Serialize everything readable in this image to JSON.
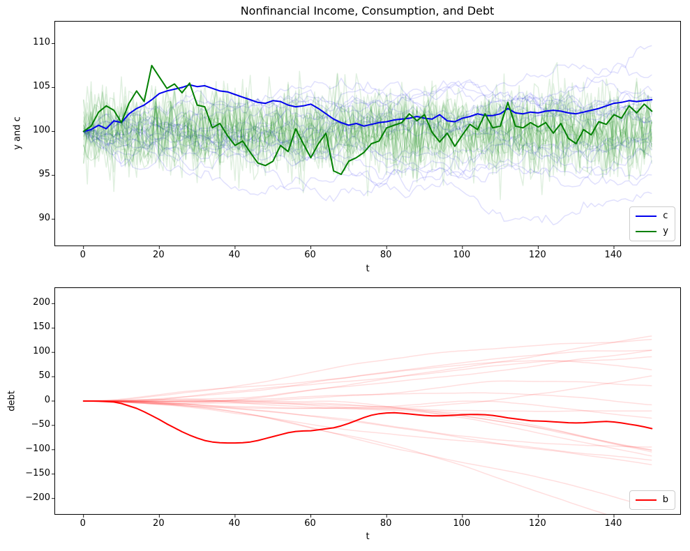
{
  "figure": {
    "title": "Nonfinancial Income, Consumption, and Debt"
  },
  "chart_data": [
    {
      "id": "income-consumption",
      "type": "line",
      "title": "Nonfinancial Income, Consumption, and Debt",
      "xlabel": "t",
      "ylabel": "y and c",
      "xlim": [
        -7.5,
        157.5
      ],
      "ylim": [
        87.0,
        112.5
      ],
      "xticks": [
        0,
        20,
        40,
        60,
        80,
        100,
        120,
        140
      ],
      "yticks": [
        90,
        95,
        100,
        105,
        110
      ],
      "grid": false,
      "t_start": 0,
      "t_step": 2,
      "series": [
        {
          "name": "c",
          "color": "#0000ee",
          "linewidth": 2,
          "values": [
            100.0,
            100.2,
            100.7,
            100.3,
            101.2,
            101.0,
            102.0,
            102.6,
            103.0,
            103.6,
            104.3,
            104.6,
            104.8,
            105.0,
            105.3,
            105.1,
            105.2,
            104.9,
            104.6,
            104.5,
            104.2,
            103.9,
            103.6,
            103.3,
            103.2,
            103.5,
            103.4,
            103.0,
            102.8,
            102.9,
            103.1,
            102.6,
            102.0,
            101.4,
            101.0,
            100.7,
            100.9,
            100.6,
            100.8,
            101.0,
            101.1,
            101.3,
            101.4,
            101.5,
            101.7,
            101.5,
            101.4,
            101.9,
            101.2,
            101.1,
            101.5,
            101.7,
            102.0,
            101.8,
            101.8,
            102.0,
            102.6,
            102.1,
            102.0,
            102.2,
            102.1,
            102.3,
            102.4,
            102.3,
            102.1,
            102.0,
            102.2,
            102.4,
            102.6,
            102.9,
            103.2,
            103.3,
            103.5,
            103.4,
            103.5,
            103.6
          ]
        },
        {
          "name": "y",
          "color": "#008000",
          "linewidth": 2,
          "values": [
            100.0,
            100.6,
            102.2,
            102.9,
            102.4,
            101.0,
            103.2,
            104.6,
            103.4,
            107.5,
            106.2,
            104.9,
            105.4,
            104.4,
            105.5,
            103.0,
            102.8,
            100.4,
            100.9,
            99.5,
            98.4,
            98.9,
            97.6,
            96.4,
            96.1,
            96.6,
            98.4,
            97.7,
            100.3,
            98.6,
            97.0,
            98.6,
            99.8,
            95.5,
            95.1,
            96.6,
            97.0,
            97.6,
            98.6,
            98.9,
            100.4,
            100.7,
            101.0,
            102.0,
            101.2,
            101.9,
            99.9,
            98.8,
            99.8,
            98.3,
            99.6,
            100.8,
            100.2,
            102.0,
            100.4,
            100.6,
            103.3,
            100.6,
            100.4,
            101.0,
            100.5,
            101.0,
            99.8,
            100.9,
            99.2,
            98.6,
            100.2,
            99.6,
            101.1,
            100.8,
            101.9,
            101.5,
            102.9,
            102.1,
            103.1,
            102.3
          ]
        }
      ],
      "legend": {
        "location": "lower right",
        "entries": [
          {
            "label": "c",
            "color": "#0000ee"
          },
          {
            "label": "y",
            "color": "#008000"
          }
        ]
      },
      "background_ensembles": [
        {
          "model": "random_walk",
          "n_paths": 20,
          "start": 100,
          "step_sigma": 0.42,
          "color": "#0000ee",
          "alpha": 0.12
        },
        {
          "model": "iid_normal",
          "n_paths": 20,
          "mean": 100,
          "sigma": 2.3,
          "color": "#008000",
          "alpha": 0.12
        }
      ],
      "seed": 42
    },
    {
      "id": "debt",
      "type": "line",
      "title": "",
      "xlabel": "t",
      "ylabel": "debt",
      "xlim": [
        -7.5,
        157.5
      ],
      "ylim": [
        -232,
        232
      ],
      "xticks": [
        0,
        20,
        40,
        60,
        80,
        100,
        120,
        140
      ],
      "yticks": [
        -200,
        -150,
        -100,
        -50,
        0,
        50,
        100,
        150,
        200
      ],
      "grid": false,
      "t_start": 0,
      "t_step": 2,
      "series": [
        {
          "name": "b",
          "color": "#ff0000",
          "linewidth": 2,
          "values": [
            0,
            0,
            -0.5,
            -1,
            -2,
            -5,
            -10,
            -15,
            -22,
            -30,
            -38,
            -47,
            -55,
            -63,
            -70,
            -76,
            -81,
            -84,
            -85.5,
            -86,
            -86,
            -85.5,
            -84,
            -81,
            -77,
            -73,
            -69,
            -65,
            -62.5,
            -61.5,
            -61,
            -59,
            -57,
            -55,
            -51,
            -46,
            -40,
            -34,
            -29,
            -26,
            -24.5,
            -24,
            -25,
            -26.5,
            -28,
            -29.5,
            -30.5,
            -30.5,
            -30,
            -29,
            -28,
            -27.5,
            -27.5,
            -28,
            -29.5,
            -32,
            -34.5,
            -36.5,
            -38.5,
            -40.5,
            -41,
            -41.5,
            -42.5,
            -43.5,
            -44.5,
            -45,
            -44.5,
            -43.5,
            -42.5,
            -42,
            -43,
            -45,
            -47.5,
            -50,
            -53,
            -56.5
          ]
        }
      ],
      "legend": {
        "location": "lower right",
        "entries": [
          {
            "label": "b",
            "color": "#ff0000"
          }
        ]
      },
      "background_ensembles": [
        {
          "model": "integrated_random_walk",
          "n_paths": 20,
          "accel_sigma": 0.09,
          "color": "#ff0000",
          "alpha": 0.13
        }
      ],
      "seed": 7
    }
  ]
}
